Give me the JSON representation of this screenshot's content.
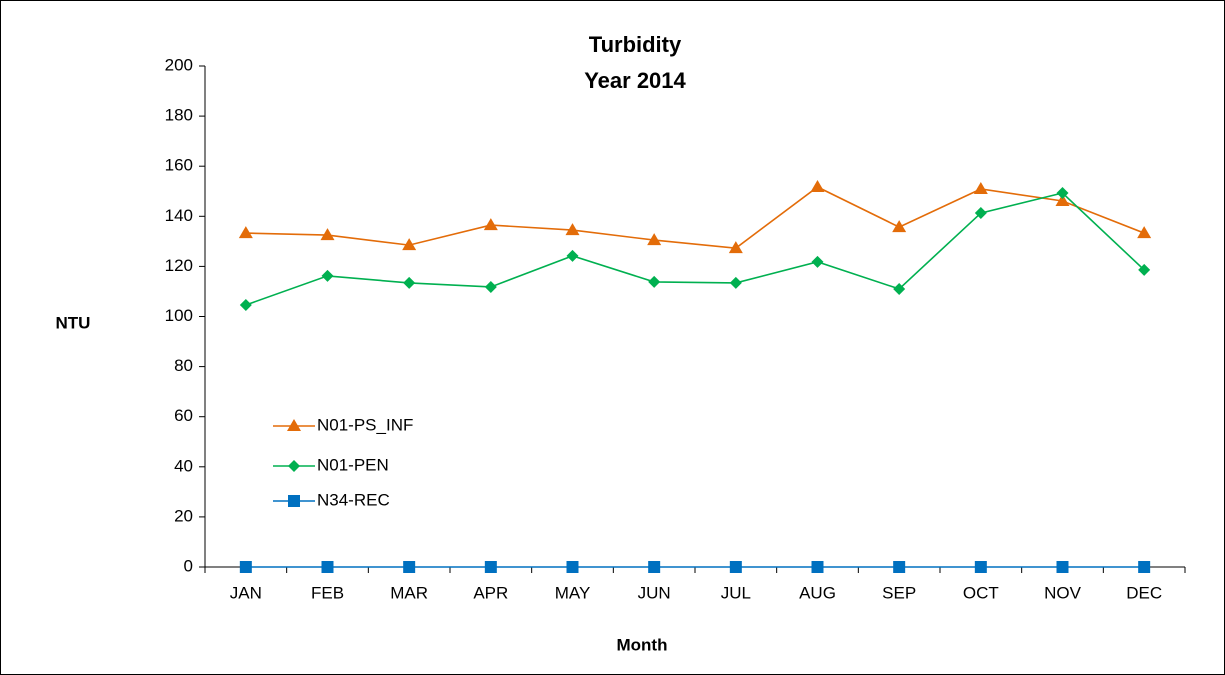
{
  "chart_data": {
    "type": "line",
    "title": "Turbidity",
    "subtitle": "Year 2014",
    "x_label": "Month",
    "y_label": "NTU",
    "categories": [
      "JAN",
      "FEB",
      "MAR",
      "APR",
      "MAY",
      "JUN",
      "JUL",
      "AUG",
      "SEP",
      "OCT",
      "NOV",
      "DEC"
    ],
    "series": [
      {
        "name": "N01-PS_INF",
        "color": "#e36c09",
        "marker": "triangle",
        "values": [
          133.3,
          132.5,
          128.5,
          136.5,
          134.5,
          130.5,
          127.3,
          151.7,
          135.7,
          150.9,
          146.1,
          133.3
        ]
      },
      {
        "name": "N01-PEN",
        "color": "#00b050",
        "marker": "diamond",
        "values": [
          104.6,
          116.2,
          113.4,
          111.8,
          124.2,
          113.8,
          113.4,
          121.8,
          111.0,
          141.3,
          149.3,
          118.6
        ]
      },
      {
        "name": "N34-REC",
        "color": "#0070c0",
        "marker": "square",
        "values": [
          0,
          0,
          0,
          0,
          0,
          0,
          0,
          0,
          0,
          0,
          0,
          0
        ]
      }
    ],
    "ylim": [
      0,
      200
    ],
    "yticks": [
      0,
      20,
      40,
      60,
      80,
      100,
      120,
      140,
      160,
      180,
      200
    ],
    "grid": false,
    "legend": "left"
  }
}
